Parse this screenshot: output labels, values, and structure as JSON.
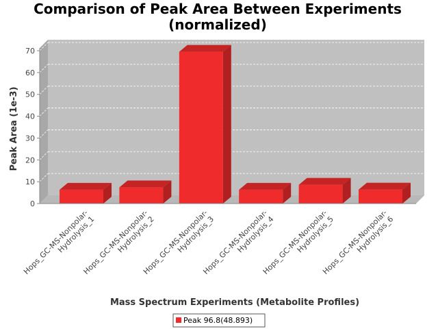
{
  "chart_data": {
    "type": "bar",
    "title_line1": "Comparison of Peak Area Between Experiments",
    "title_line2": "(normalized)",
    "xlabel": "Mass Spectrum Experiments (Metabolite Profiles)",
    "ylabel": "Peak Area (1e-3)",
    "ylim": [
      0,
      70
    ],
    "yticks": [
      "0",
      "10",
      "20",
      "30",
      "40",
      "50",
      "60",
      "70"
    ],
    "grid": true,
    "legend_position": "bottom-center",
    "categories": [
      [
        "Hops_GC-MS-Nonpolar-",
        "Hydrolysis_1"
      ],
      [
        "Hops_GC-MS-Nonpolar-",
        "Hydrolysis_2"
      ],
      [
        "Hops_GC-MS-Nonpolar-",
        "Hydrolysis_3"
      ],
      [
        "Hops_GC-MS-Nonpolar-",
        "Hydrolysis_4"
      ],
      [
        "Hops_GC-MS-Nonpolar-",
        "Hydrolysis_5"
      ],
      [
        "Hops_GC-MS-Nonpolar-",
        "Hydrolysis_6"
      ]
    ],
    "series": [
      {
        "name": "Peak 96.8(48.893)",
        "color": "#f02b2b",
        "values": [
          6.3,
          7.4,
          69.5,
          6.3,
          8.6,
          6.4
        ]
      }
    ],
    "colors": {
      "plot_bg": "#c0c0c0",
      "plot_side": "#a8a8a8",
      "bar_front": "#f02b2b",
      "bar_top": "#c42424",
      "bar_side": "#b02020"
    }
  }
}
